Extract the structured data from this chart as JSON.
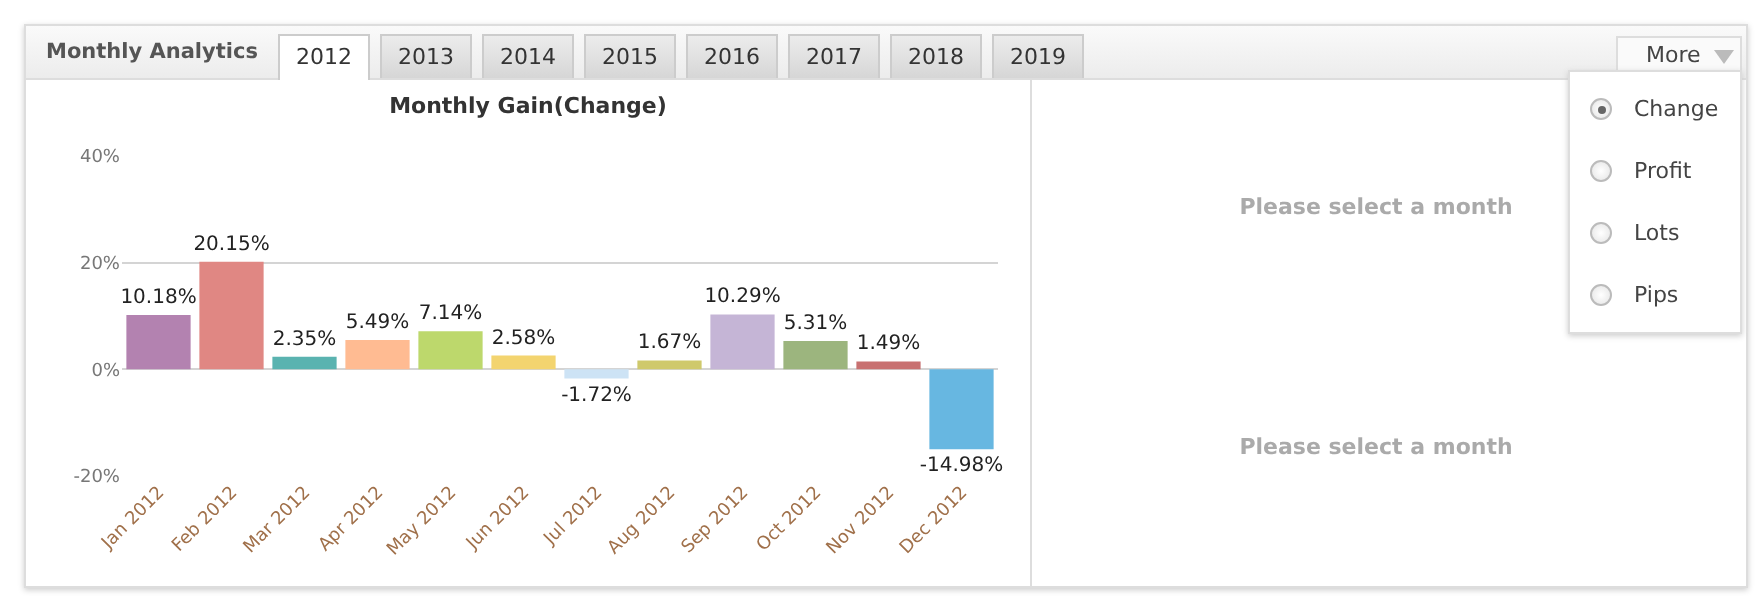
{
  "chart_data": {
    "type": "bar",
    "title": "Monthly Gain(Change)",
    "categories": [
      "Jan 2012",
      "Feb 2012",
      "Mar 2012",
      "Apr 2012",
      "May 2012",
      "Jun 2012",
      "Jul 2012",
      "Aug 2012",
      "Sep 2012",
      "Oct 2012",
      "Nov 2012",
      "Dec 2012"
    ],
    "values": [
      10.18,
      20.15,
      2.35,
      5.49,
      7.14,
      2.58,
      -1.72,
      1.67,
      10.29,
      5.31,
      1.49,
      -14.98
    ],
    "value_labels": [
      "10.18%",
      "20.15%",
      "2.35%",
      "5.49%",
      "7.14%",
      "2.58%",
      "-1.72%",
      "1.67%",
      "10.29%",
      "5.31%",
      "1.49%",
      "-14.98%"
    ],
    "colors": [
      "#b382b0",
      "#e08783",
      "#5ab3b0",
      "#ffbb92",
      "#bdd86c",
      "#f3d46f",
      "#cde3f5",
      "#cfc96c",
      "#c5b5d6",
      "#9cb57e",
      "#c87171",
      "#67b7e1"
    ],
    "ylim": [
      -20,
      40
    ],
    "yticks": [
      {
        "value": 40,
        "label": "40%"
      },
      {
        "value": 20,
        "label": "20%"
      },
      {
        "value": 0,
        "label": "0%"
      },
      {
        "value": -20,
        "label": "-20%"
      }
    ],
    "grid": "y",
    "annotations": [
      "Monthly Analytics",
      "2012",
      "2013",
      "2014",
      "2015",
      "2016",
      "2017",
      "2018",
      "2019",
      "More",
      "Change",
      "Profit",
      "Lots",
      "Pips",
      "Please select a month",
      "Please select a month"
    ]
  }
}
